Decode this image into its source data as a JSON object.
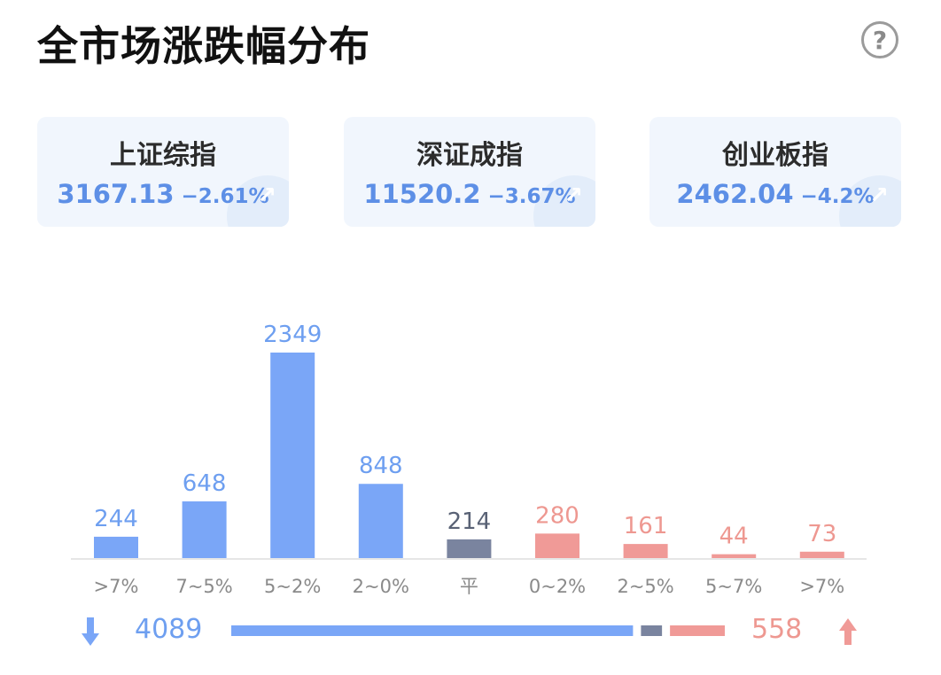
{
  "title": "全市场涨跌幅分布",
  "help_icon": "question-circle-icon",
  "indices": [
    {
      "name": "上证综指",
      "value": "3167.13",
      "change": "−2.61%"
    },
    {
      "name": "深证成指",
      "value": "11520.2",
      "change": "−3.67%"
    },
    {
      "name": "创业板指",
      "value": "2462.04",
      "change": "−4.2%"
    }
  ],
  "colors": {
    "down": "#7aa6f7",
    "flat": "#7a849f",
    "up": "#f09a97",
    "down_text": "#6e9ff0",
    "flat_text": "#596275",
    "up_text": "#ee9891",
    "axis": "#e6e6e6",
    "tick": "#8a8a8a"
  },
  "chart_data": {
    "type": "bar",
    "categories": [
      ">7%",
      "7~5%",
      "5~2%",
      "2~0%",
      "平",
      "0~2%",
      "2~5%",
      "5~7%",
      ">7%"
    ],
    "values": [
      244,
      648,
      2349,
      848,
      214,
      280,
      161,
      44,
      73
    ],
    "groups": [
      "down",
      "down",
      "down",
      "down",
      "flat",
      "up",
      "up",
      "up",
      "up"
    ],
    "ylim": [
      0,
      2349
    ],
    "grid": false,
    "title": ""
  },
  "summary": {
    "down_total": "4089",
    "up_total": "558",
    "down_value": 4089,
    "flat_value": 214,
    "up_value": 558,
    "down_icon": "arrow-down-icon",
    "up_icon": "arrow-up-icon"
  }
}
